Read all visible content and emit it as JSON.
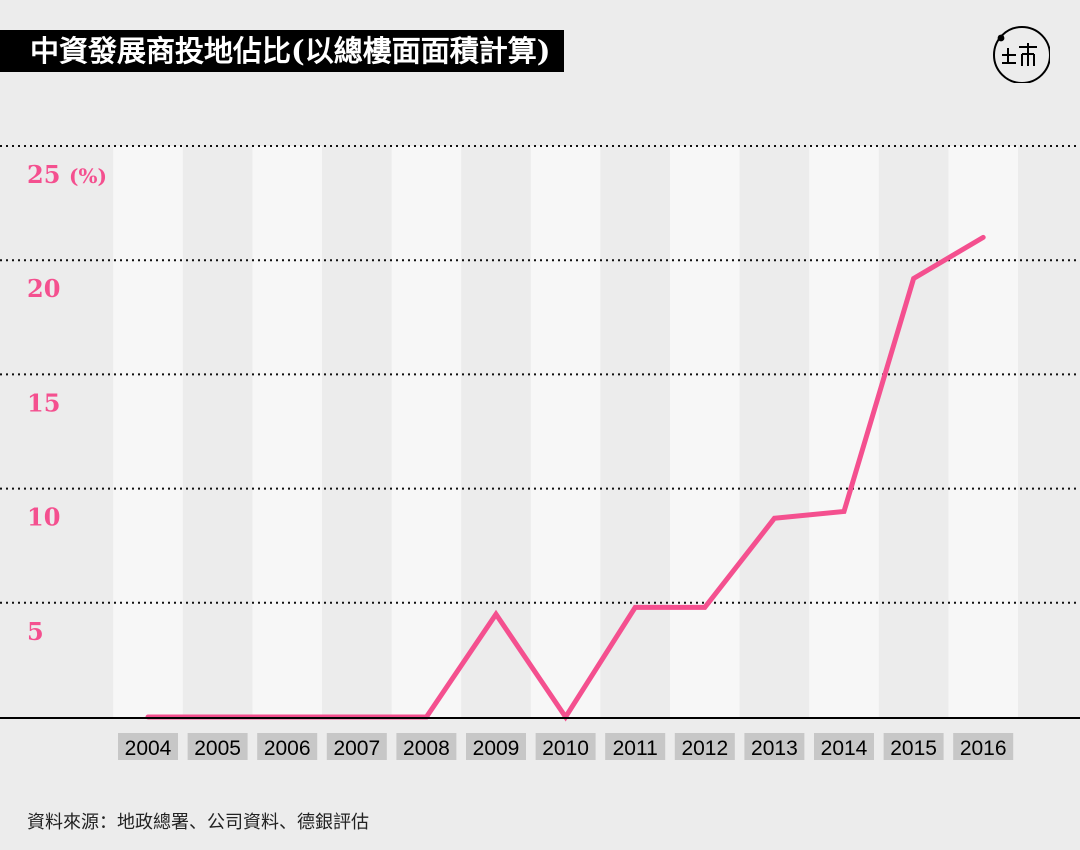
{
  "header": {
    "title": "中資發展商投地佔比(以總樓面面積計算)",
    "logo_icon": "end-logo-icon"
  },
  "footer": {
    "source": "資料來源：地政總署、公司資料、德銀評估"
  },
  "colors": {
    "line": "#f4508f",
    "ytick": "#f4508f",
    "band_light": "#f7f7f7",
    "band_dark": "#ececec",
    "baseline": "#000000",
    "xlabel_bg": "#c7c7c7"
  },
  "chart_data": {
    "type": "line",
    "title": "中資發展商投地佔比(以總樓面面積計算)",
    "x": [
      "2004",
      "2005",
      "2006",
      "2007",
      "2008",
      "2009",
      "2010",
      "2011",
      "2012",
      "2013",
      "2014",
      "2015",
      "2016"
    ],
    "series": [
      {
        "values": [
          0,
          0,
          0,
          0,
          0,
          4.5,
          0,
          4.8,
          4.8,
          8.7,
          9.0,
          19.2,
          21.0
        ]
      }
    ],
    "ylim": [
      0,
      25
    ],
    "yticks": [
      "5",
      "10",
      "15",
      "20",
      "25"
    ],
    "yunit": "(%)",
    "xlabel": "",
    "ylabel": "",
    "grid": "dotted horizontal",
    "legend": "none"
  }
}
